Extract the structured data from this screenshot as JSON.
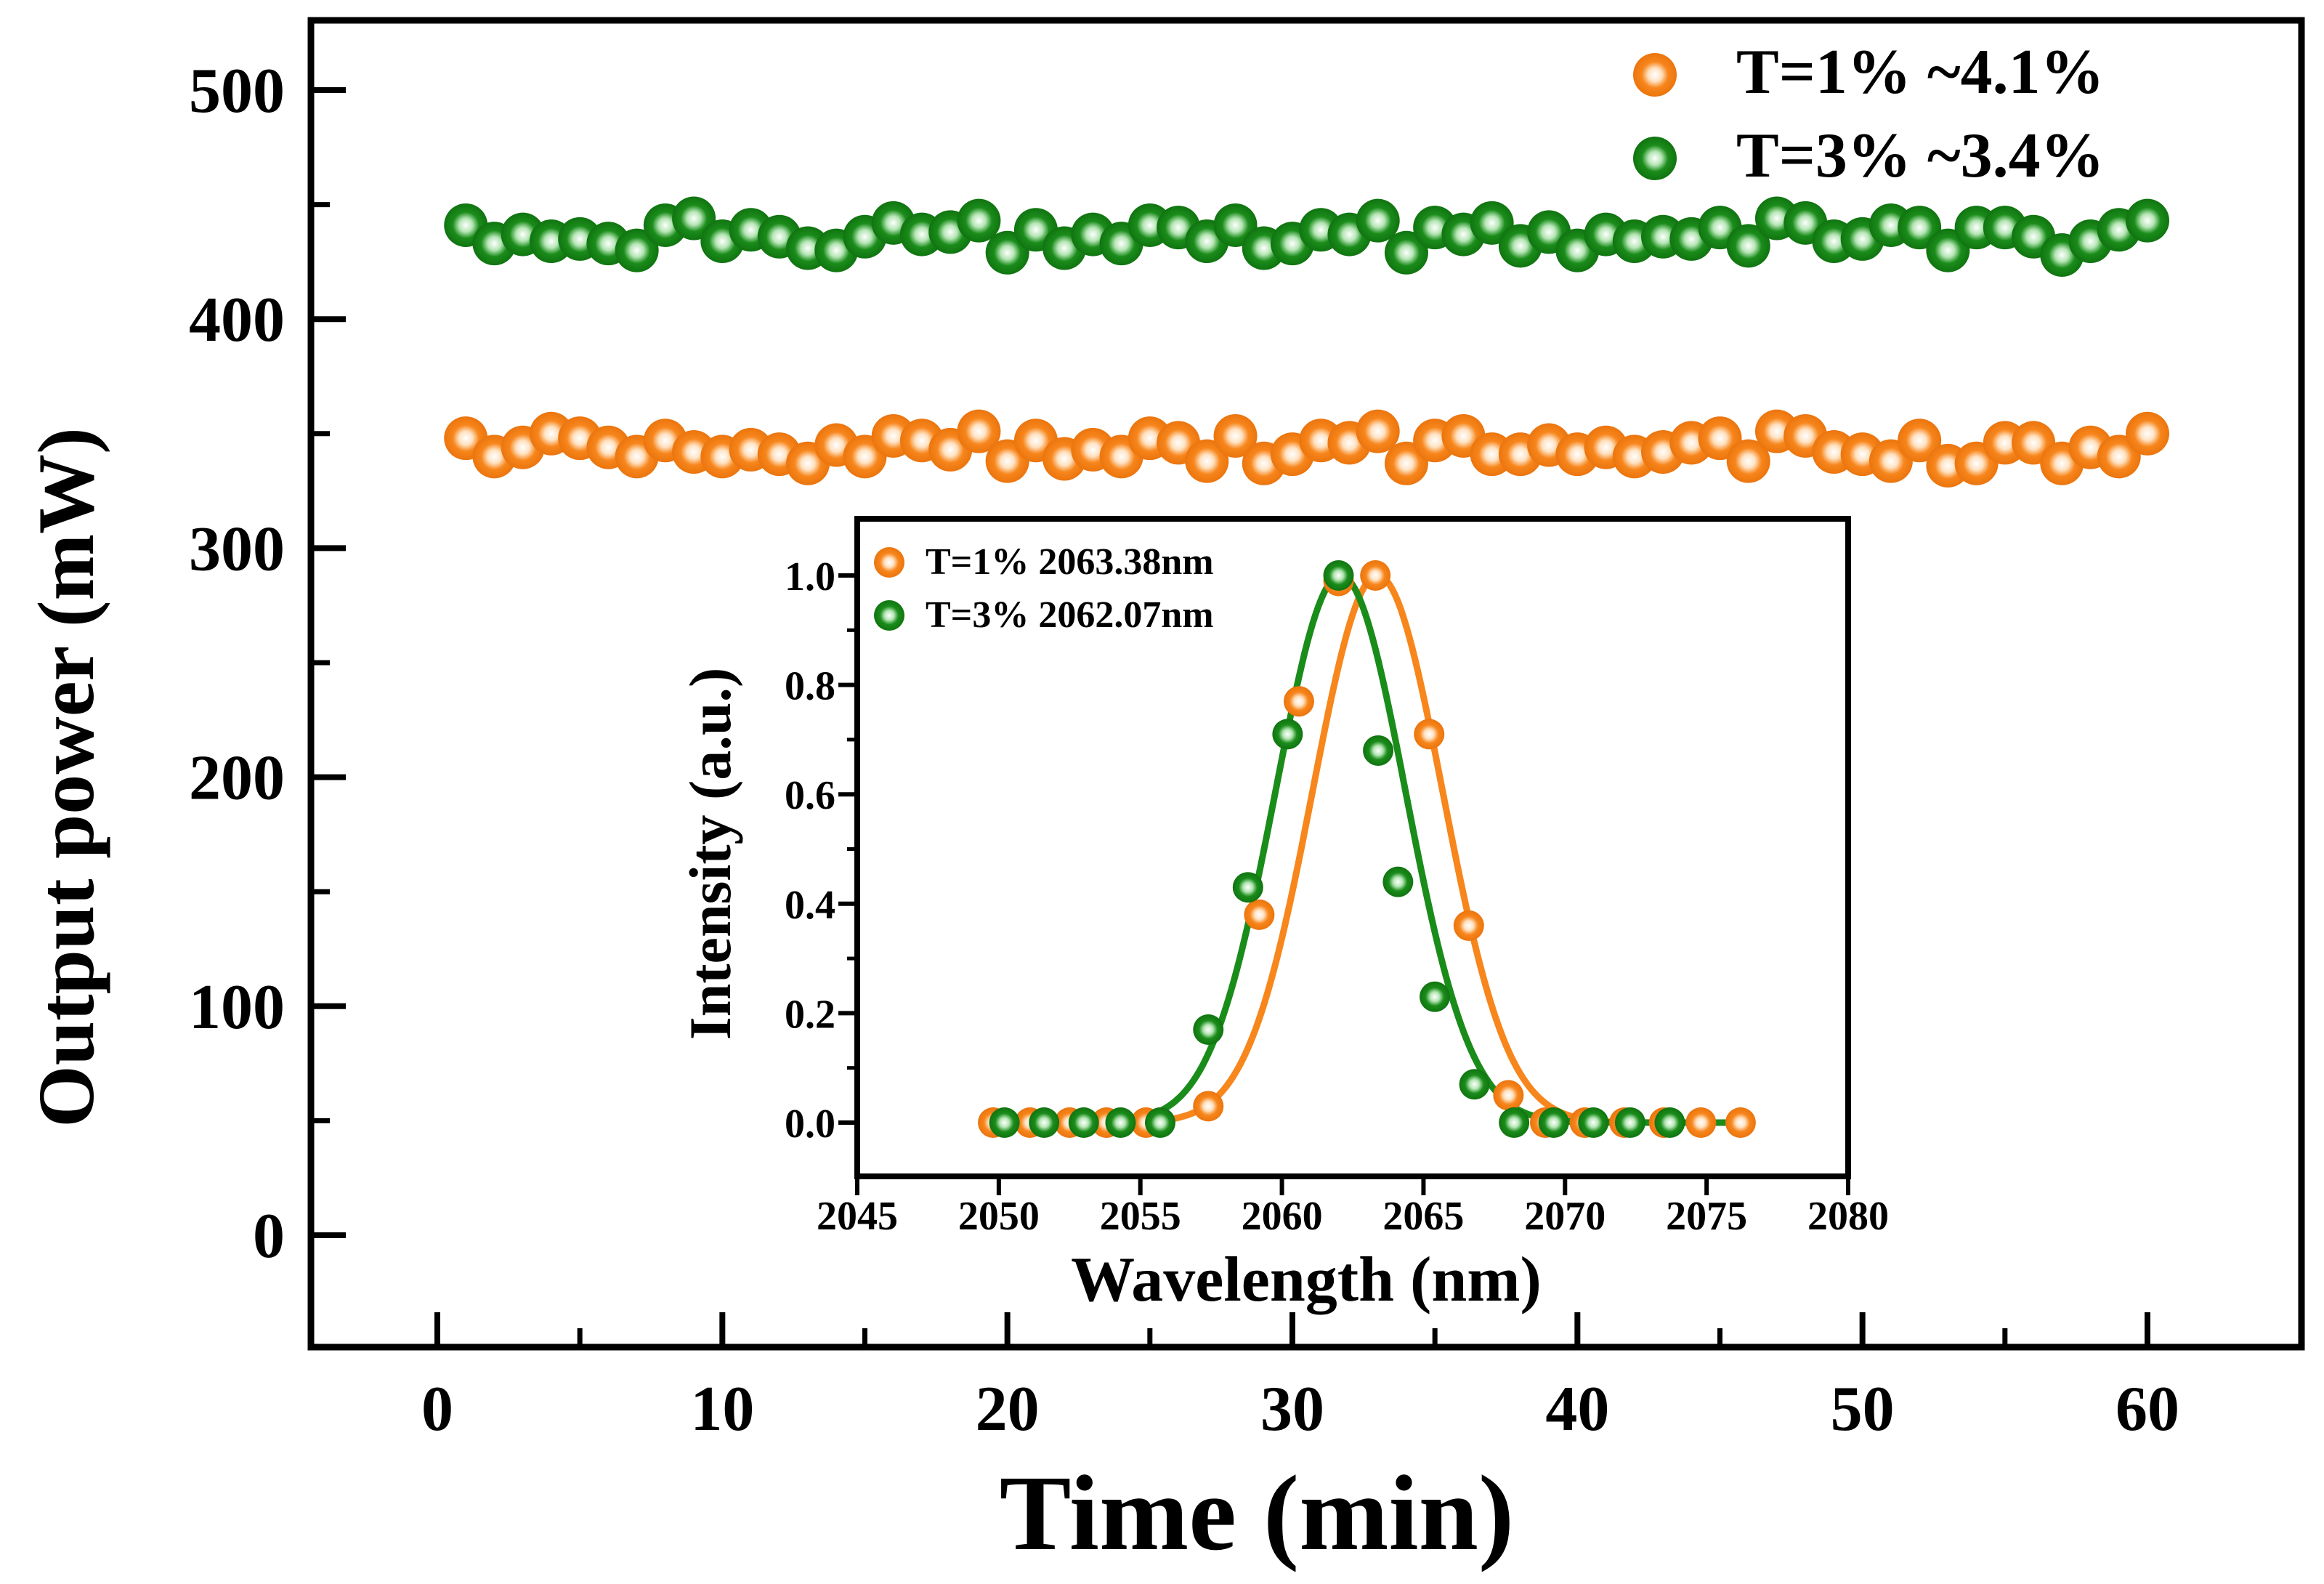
{
  "chart_data": [
    {
      "type": "scatter",
      "title": "",
      "xlabel": "Time (min)",
      "ylabel": "Output power (mW)",
      "xlim": [
        -5,
        65
      ],
      "ylim": [
        -50,
        530
      ],
      "xticks": [
        0,
        10,
        20,
        30,
        40,
        50,
        60
      ],
      "yticks": [
        0,
        100,
        200,
        300,
        400,
        500
      ],
      "xtick_labels": [
        "0",
        "10",
        "20",
        "30",
        "40",
        "50",
        "60"
      ],
      "ytick_labels": [
        "0",
        "100",
        "200",
        "300",
        "400",
        "500"
      ],
      "grid": false,
      "legend_position": "top-right",
      "series": [
        {
          "name": "T=1% ~4.1%",
          "color": "#F7861C",
          "x": [
            1,
            2,
            3,
            4,
            5,
            6,
            7,
            8,
            9,
            10,
            11,
            12,
            13,
            14,
            15,
            16,
            17,
            18,
            19,
            20,
            21,
            22,
            23,
            24,
            25,
            26,
            27,
            28,
            29,
            30,
            31,
            32,
            33,
            34,
            35,
            36,
            37,
            38,
            39,
            40,
            41,
            42,
            43,
            44,
            45,
            46,
            47,
            48,
            49,
            50,
            51,
            52,
            53,
            54,
            55,
            56,
            57,
            58,
            59,
            60
          ],
          "values": [
            348,
            340,
            344,
            350,
            348,
            344,
            340,
            347,
            342,
            340,
            343,
            341,
            337,
            345,
            340,
            349,
            347,
            343,
            351,
            338,
            347,
            339,
            343,
            340,
            348,
            346,
            338,
            349,
            337,
            341,
            347,
            346,
            351,
            337,
            347,
            349,
            341,
            341,
            345,
            341,
            344,
            340,
            342,
            346,
            348,
            338,
            351,
            349,
            342,
            341,
            338,
            347,
            336,
            337,
            346,
            346,
            337,
            344,
            340,
            350
          ]
        },
        {
          "name": "T=3% ~3.4%",
          "color": "#1A8C1A",
          "x": [
            1,
            2,
            3,
            4,
            5,
            6,
            7,
            8,
            9,
            10,
            11,
            12,
            13,
            14,
            15,
            16,
            17,
            18,
            19,
            20,
            21,
            22,
            23,
            24,
            25,
            26,
            27,
            28,
            29,
            30,
            31,
            32,
            33,
            34,
            35,
            36,
            37,
            38,
            39,
            40,
            41,
            42,
            43,
            44,
            45,
            46,
            47,
            48,
            49,
            50,
            51,
            52,
            53,
            54,
            55,
            56,
            57,
            58,
            59,
            60
          ],
          "values": [
            441,
            433,
            437,
            434,
            435,
            433,
            430,
            441,
            444,
            434,
            439,
            436,
            431,
            430,
            436,
            442,
            437,
            438,
            443,
            429,
            439,
            431,
            437,
            433,
            441,
            440,
            434,
            441,
            431,
            433,
            439,
            437,
            443,
            429,
            440,
            437,
            442,
            432,
            438,
            430,
            437,
            434,
            436,
            435,
            440,
            432,
            444,
            442,
            434,
            435,
            441,
            440,
            430,
            440,
            440,
            436,
            428,
            434,
            439,
            443
          ]
        }
      ]
    },
    {
      "type": "scatter",
      "title": "",
      "xlabel": "Wavelength (nm)",
      "ylabel": "Intensity (a.u.)",
      "xlim": [
        2045,
        2080
      ],
      "ylim": [
        -0.07,
        1.1
      ],
      "xticks": [
        2045,
        2050,
        2055,
        2060,
        2065,
        2070,
        2075,
        2080
      ],
      "yticks": [
        0.0,
        0.2,
        0.4,
        0.6,
        0.8,
        1.0
      ],
      "xtick_labels": [
        "2045",
        "2050",
        "2055",
        "2060",
        "2065",
        "2070",
        "2075",
        "2080"
      ],
      "ytick_labels": [
        "0.0",
        "0.2",
        "0.4",
        "0.6",
        "0.8",
        "1.0"
      ],
      "grid": false,
      "legend_position": "top-left",
      "series": [
        {
          "name": "T=1% 2063.38nm",
          "color": "#F7861C",
          "fit": {
            "center": 2063.38,
            "fwhm": 5.4
          },
          "x": [
            2049.8,
            2051.1,
            2052.5,
            2053.8,
            2055.2,
            2057.4,
            2059.2,
            2060.6,
            2062.0,
            2063.3,
            2065.2,
            2066.6,
            2068.0,
            2069.3,
            2070.7,
            2072.1,
            2073.5,
            2074.8,
            2076.2
          ],
          "values": [
            0.0,
            0.0,
            0.0,
            0.0,
            0.0,
            0.03,
            0.38,
            0.77,
            0.99,
            1.0,
            0.71,
            0.36,
            0.05,
            0.0,
            0.0,
            0.0,
            0.0,
            0.0,
            0.0
          ]
        },
        {
          "name": "T=3% 2062.07nm",
          "color": "#1A8C1A",
          "fit": {
            "center": 2062.07,
            "fwhm": 5.4
          },
          "x": [
            2050.2,
            2051.6,
            2053.0,
            2054.3,
            2055.7,
            2057.4,
            2058.8,
            2060.2,
            2062.0,
            2063.4,
            2064.1,
            2065.4,
            2066.8,
            2068.2,
            2069.6,
            2071.0,
            2072.3,
            2073.7
          ],
          "values": [
            0.0,
            0.0,
            0.0,
            0.0,
            0.0,
            0.17,
            0.43,
            0.71,
            1.0,
            0.68,
            0.44,
            0.23,
            0.07,
            0.0,
            0.0,
            0.0,
            0.0,
            0.0
          ]
        }
      ]
    }
  ]
}
